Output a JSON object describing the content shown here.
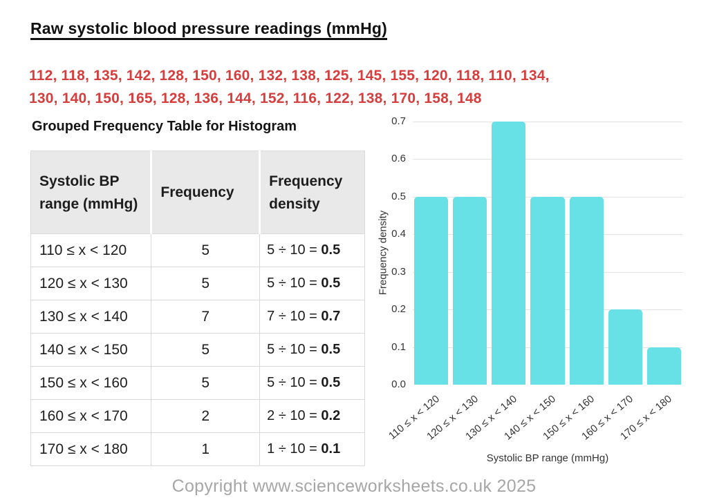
{
  "page": {
    "title": "Raw systolic blood pressure readings (mmHg)",
    "raw_data_line1": "112, 118, 135, 142, 128, 150, 160, 132, 138, 125, 145, 155, 120, 118, 110, 134,",
    "raw_data_line2": "130, 140, 150, 165, 128, 136, 144, 152, 116, 122, 138, 170, 158, 148",
    "copyright": "Copyright www.scienceworksheets.co.uk 2025"
  },
  "colors": {
    "raw_data_red": "#d63e3e",
    "bar_cyan": "#68e1e6",
    "table_header_bg": "#e9e9e9",
    "copyright_gray": "#a6a6a6"
  },
  "table": {
    "heading": "Grouped Frequency Table for Histogram",
    "columns": [
      "Systolic BP range (mmHg)",
      "Frequency",
      "Frequency density"
    ],
    "rows": [
      {
        "range": "110 ≤ x < 120",
        "frequency": "5",
        "calc": "5 ÷ 10 = ",
        "density": "0.5"
      },
      {
        "range": "120 ≤ x < 130",
        "frequency": "5",
        "calc": "5 ÷ 10 = ",
        "density": "0.5"
      },
      {
        "range": "130 ≤ x < 140",
        "frequency": "7",
        "calc": "7 ÷ 10 = ",
        "density": "0.7"
      },
      {
        "range": "140 ≤ x < 150",
        "frequency": "5",
        "calc": "5 ÷ 10 = ",
        "density": "0.5"
      },
      {
        "range": "150 ≤ x < 160",
        "frequency": "5",
        "calc": "5 ÷ 10 = ",
        "density": "0.5"
      },
      {
        "range": "160 ≤ x < 170",
        "frequency": "2",
        "calc": "2 ÷ 10 = ",
        "density": "0.2"
      },
      {
        "range": "170 ≤ x < 180",
        "frequency": "1",
        "calc": "1 ÷ 10 = ",
        "density": "0.1"
      }
    ]
  },
  "chart_data": {
    "type": "bar",
    "title": "",
    "categories": [
      "110 ≤ x < 120",
      "120 ≤ x < 130",
      "130 ≤ x < 140",
      "140 ≤ x < 150",
      "150 ≤ x < 160",
      "160 ≤ x < 170",
      "170 ≤ x < 180"
    ],
    "values": [
      0.5,
      0.5,
      0.7,
      0.5,
      0.5,
      0.2,
      0.1
    ],
    "xlabel": "Systolic BP range (mmHg)",
    "ylabel": "Frequency density",
    "ylim": [
      0,
      0.7
    ],
    "yticks": [
      0.0,
      0.1,
      0.2,
      0.3,
      0.4,
      0.5,
      0.6,
      0.7
    ],
    "grid": true,
    "legend": "none",
    "bar_color": "#68e1e6"
  }
}
